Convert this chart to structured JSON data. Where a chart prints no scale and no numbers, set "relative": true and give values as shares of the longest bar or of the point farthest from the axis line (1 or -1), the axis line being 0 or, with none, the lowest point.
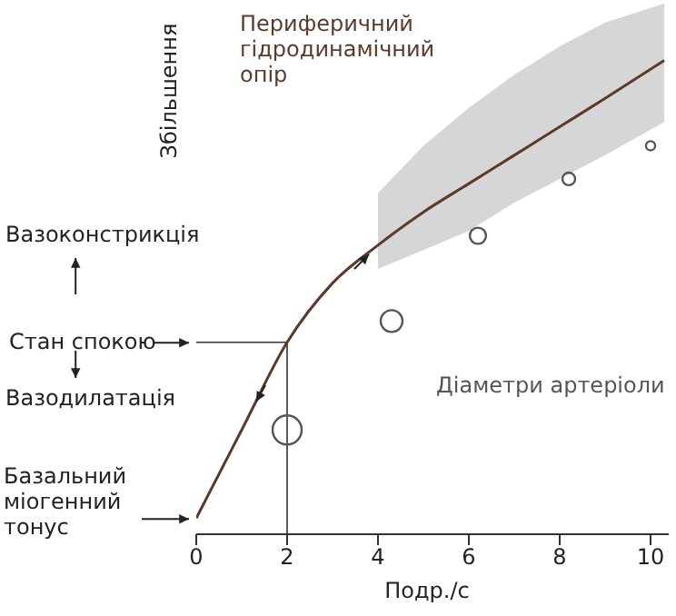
{
  "chart_data": {
    "type": "line",
    "relative": true,
    "xlabel": "Подр./с",
    "ylabel": "Збільшення",
    "xlim": [
      0,
      10.4
    ],
    "xticks": [
      0,
      2,
      4,
      6,
      8,
      10
    ],
    "line_style": "solid",
    "series": [
      {
        "name": "Периферичний гідродинамічний опір",
        "color": "#5a3a2a",
        "x": [
          0,
          1,
          2,
          3,
          4,
          5,
          6,
          7,
          8,
          9,
          10.3
        ],
        "values": [
          0.034,
          0.22,
          0.405,
          0.53,
          0.61,
          0.68,
          0.74,
          0.8,
          0.86,
          0.92,
          1
        ],
        "lower": [
          null,
          null,
          null,
          null,
          0.56,
          0.6,
          0.64,
          0.7,
          0.75,
          0.8,
          0.87
        ],
        "upper": [
          null,
          null,
          null,
          null,
          0.72,
          0.82,
          0.9,
          0.97,
          1.03,
          1.08,
          1.12
        ]
      },
      {
        "name": "Діаметри артеріоли",
        "type": "bubble",
        "color": "#555555",
        "x": [
          2,
          4.3,
          6.2,
          8.2,
          10
        ],
        "values": [
          0.22,
          0.45,
          0.63,
          0.75,
          0.82
        ],
        "sizes": [
          1,
          0.56,
          0.31,
          0.19,
          0.1
        ]
      }
    ],
    "ref_lines": [
      {
        "axis": "y",
        "value": 0.405,
        "label": "Стан спокою"
      },
      {
        "axis": "x",
        "value": 2
      }
    ],
    "annotations": [
      "Вазоконстрикція",
      "Вазодилатація",
      {
        "text": "Базальний міогенний тонус",
        "x": 0,
        "y": 0.034
      }
    ]
  }
}
